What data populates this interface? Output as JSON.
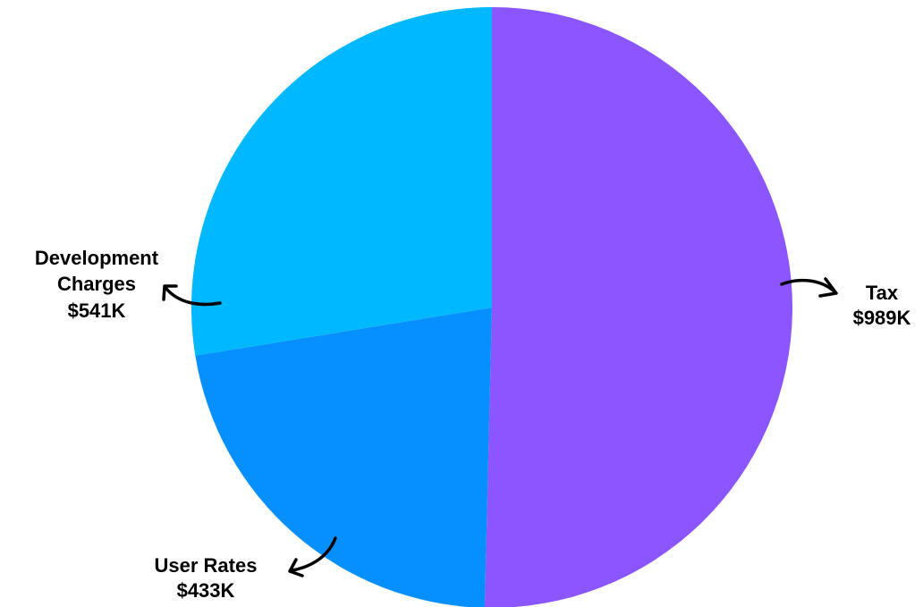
{
  "chart_data": {
    "type": "pie",
    "title": "",
    "slices": [
      {
        "label": "Tax",
        "value": 989,
        "display": "$989K",
        "color": "#8b55ff"
      },
      {
        "label": "User Rates",
        "value": 433,
        "display": "$433K",
        "color": "#068fff"
      },
      {
        "label": "Development Charges",
        "value": 541,
        "display": "$541K",
        "color": "#00b8ff"
      }
    ],
    "units": "K",
    "start_angle": "12 o'clock",
    "direction": "clockwise",
    "legend": "none",
    "annotations": "curved arrows from slice edges to labels"
  }
}
